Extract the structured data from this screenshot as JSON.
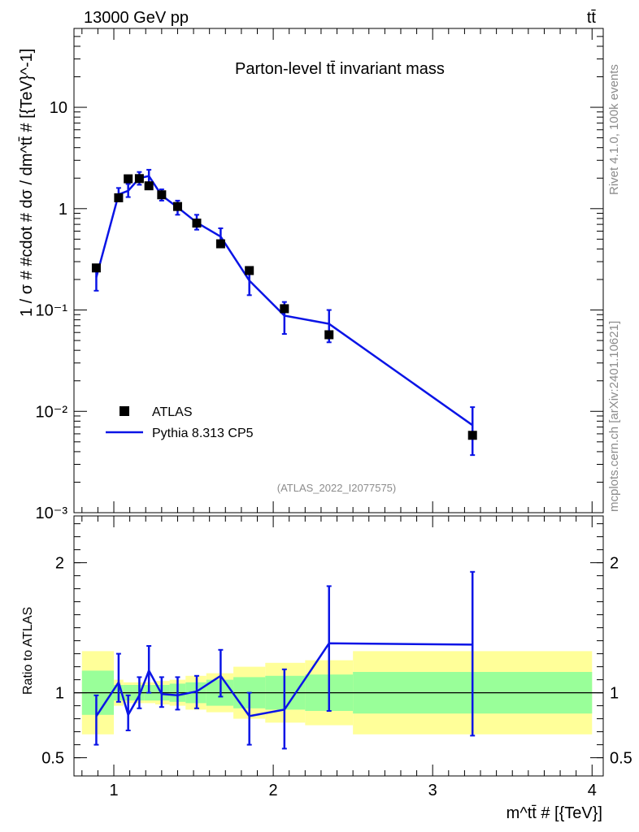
{
  "header": {
    "left": "13000 GeV pp",
    "right": "tt̄"
  },
  "side_labels": {
    "rivet": "Rivet 4.1.0,  100k events",
    "mcplots": "mcplots.cern.ch [arXiv:2401.10621]"
  },
  "analysis_id": "(ATLAS_2022_I2077575)",
  "colors": {
    "mc": "#0a14e6",
    "band_inner": "#99ff99",
    "band_outer": "#ffff99",
    "data": "#000000"
  },
  "chart_data": [
    {
      "type": "scatter",
      "title": "Parton-level tt̄ invariant mass",
      "ylabel": "1 / σ # #cdot # dσ / dm^tt̄ # [{TeV}^-1]",
      "xlim": [
        0.75,
        4.07
      ],
      "ylim": [
        0.001,
        60
      ],
      "yscale": "log",
      "y_ticks": [
        {
          "value": 10,
          "label": "10"
        },
        {
          "value": 1,
          "label": "1"
        },
        {
          "value": 0.1,
          "label": "10⁻¹"
        },
        {
          "value": 0.01,
          "label": "10⁻²"
        },
        {
          "value": 0.001,
          "label": "10⁻³"
        }
      ],
      "legend": [
        {
          "label": "ATLAS",
          "kind": "marker"
        },
        {
          "label": "Pythia 8.313 CP5",
          "kind": "line"
        }
      ],
      "series": [
        {
          "name": "ATLAS",
          "x": [
            0.89,
            1.03,
            1.09,
            1.16,
            1.22,
            1.3,
            1.4,
            1.52,
            1.67,
            1.85,
            2.07,
            2.35,
            3.25
          ],
          "values": [
            0.26,
            1.28,
            1.97,
            1.98,
            1.68,
            1.37,
            1.05,
            0.72,
            0.45,
            0.245,
            0.103,
            0.057,
            0.0058
          ],
          "yerr_low": [
            0.26,
            1.28,
            1.97,
            1.98,
            1.68,
            1.37,
            1.05,
            0.72,
            0.45,
            0.245,
            0.103,
            0.047,
            0.0038
          ],
          "yerr_high": [
            0.26,
            1.28,
            1.97,
            1.98,
            1.68,
            1.37,
            1.05,
            0.72,
            0.45,
            0.245,
            0.103,
            0.067,
            0.0078
          ]
        },
        {
          "name": "Pythia 8.313 CP5",
          "x": [
            0.89,
            1.03,
            1.09,
            1.16,
            1.22,
            1.3,
            1.4,
            1.52,
            1.67,
            1.85,
            2.07,
            2.35,
            3.25
          ],
          "values": [
            0.21,
            1.38,
            1.5,
            2.0,
            2.1,
            1.35,
            1.03,
            0.73,
            0.53,
            0.195,
            0.088,
            0.073,
            0.0073
          ],
          "yerr_low": [
            0.155,
            1.2,
            1.3,
            1.72,
            1.78,
            1.2,
            0.87,
            0.62,
            0.43,
            0.14,
            0.058,
            0.048,
            0.0037
          ],
          "yerr_high": [
            0.275,
            1.6,
            1.75,
            2.3,
            2.42,
            1.55,
            1.2,
            0.87,
            0.64,
            0.245,
            0.12,
            0.1,
            0.011
          ]
        }
      ]
    },
    {
      "type": "line",
      "ylabel": "Ratio to ATLAS",
      "xlabel": "m^tt̄ # [{TeV}]",
      "xlim": [
        0.75,
        4.07
      ],
      "ylim": [
        0.36,
        2.36
      ],
      "x_ticks": [
        {
          "value": 1,
          "label": "1"
        },
        {
          "value": 2,
          "label": "2"
        },
        {
          "value": 3,
          "label": "3"
        },
        {
          "value": 4,
          "label": "4"
        }
      ],
      "y_ticks": [
        {
          "value": 2,
          "label": "2"
        },
        {
          "value": 1,
          "label": "1"
        },
        {
          "value": 0.5,
          "label": "0.5"
        }
      ],
      "bins": [
        0.8,
        1.0,
        1.06,
        1.12,
        1.19,
        1.26,
        1.35,
        1.45,
        1.58,
        1.75,
        1.95,
        2.2,
        2.5,
        4.0
      ],
      "band_inner": [
        0.17,
        0.06,
        0.06,
        0.06,
        0.06,
        0.06,
        0.07,
        0.08,
        0.1,
        0.12,
        0.13,
        0.14,
        0.16
      ],
      "band_outer": [
        0.32,
        0.1,
        0.08,
        0.08,
        0.08,
        0.09,
        0.1,
        0.13,
        0.15,
        0.2,
        0.23,
        0.25,
        0.32
      ],
      "series": [
        {
          "name": "Pythia 8.313 CP5",
          "x": [
            0.89,
            1.03,
            1.09,
            1.16,
            1.22,
            1.3,
            1.4,
            1.52,
            1.67,
            1.85,
            2.07,
            2.35,
            3.25
          ],
          "values": [
            0.82,
            1.08,
            0.83,
            0.98,
            1.17,
            0.99,
            0.98,
            1.01,
            1.13,
            0.82,
            0.87,
            1.38,
            1.37
          ],
          "yerr_low": [
            0.6,
            0.93,
            0.71,
            0.88,
            1.0,
            0.89,
            0.87,
            0.88,
            0.97,
            0.6,
            0.57,
            0.86,
            0.67
          ],
          "yerr_high": [
            0.98,
            1.3,
            0.98,
            1.12,
            1.36,
            1.12,
            1.12,
            1.13,
            1.33,
            1.0,
            1.18,
            1.82,
            1.93
          ]
        }
      ]
    }
  ]
}
